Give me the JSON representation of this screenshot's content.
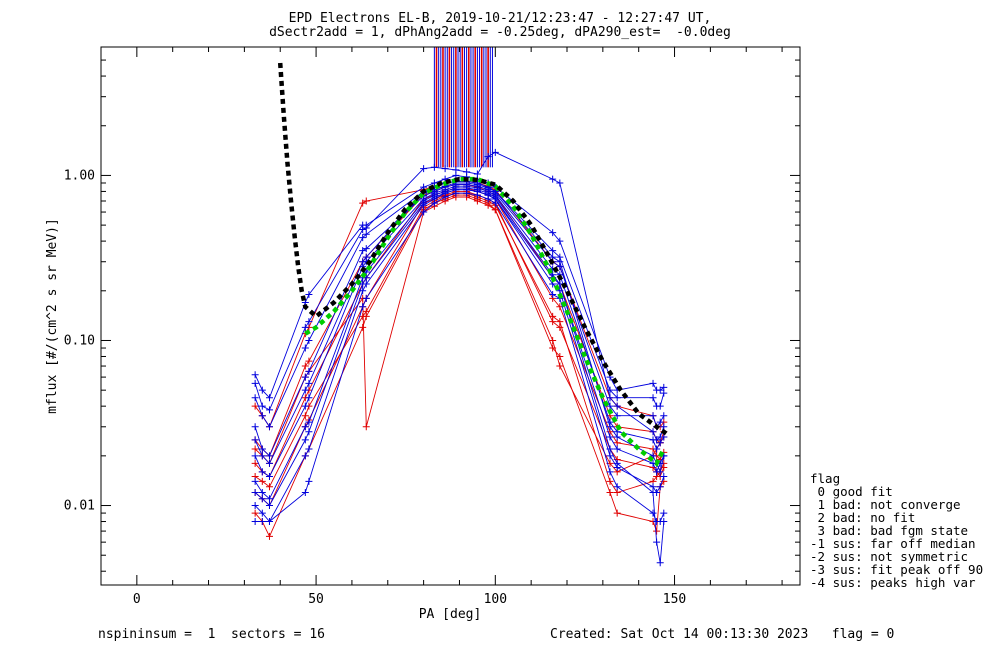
{
  "chart_data": {
    "type": "line",
    "title": "EPD Electrons EL-B, 2019-10-21/12:23:47 - 12:27:47 UT,",
    "subtitle": "dSectr2add = 1, dPhAng2add = -0.25deg, dPA290_est=  -0.0deg",
    "xlabel": "PA [deg]",
    "ylabel": "mflux [#/(cm^2 s sr MeV)]",
    "xlim": [
      -10,
      185
    ],
    "ylim": [
      0.0033,
      6.0
    ],
    "ylog": true,
    "xticks": [
      0,
      50,
      100,
      150
    ],
    "xtick_labels": [
      "0",
      "50",
      "100",
      "150"
    ],
    "yticks": [
      0.01,
      0.1,
      1.0
    ],
    "ytick_labels": [
      "0.01",
      "0.10",
      "1.00"
    ],
    "grid": false,
    "colors": {
      "red": "#e00000",
      "blue": "#0000dd",
      "green": "#00cc00",
      "black": "#000000"
    },
    "model_fit_black": {
      "name": "",
      "x": [
        40,
        41,
        42,
        43,
        44,
        45,
        46,
        47,
        50,
        55,
        60,
        65,
        70,
        75,
        80,
        85,
        90,
        95,
        100,
        105,
        110,
        115,
        120,
        125,
        130,
        135,
        140,
        145,
        148
      ],
      "y": [
        4.8,
        2.3,
        1.2,
        0.7,
        0.43,
        0.28,
        0.2,
        0.16,
        0.14,
        0.17,
        0.22,
        0.3,
        0.45,
        0.63,
        0.8,
        0.9,
        0.95,
        0.94,
        0.88,
        0.7,
        0.5,
        0.32,
        0.2,
        0.12,
        0.075,
        0.05,
        0.036,
        0.03,
        0.027
      ]
    },
    "median_fit_green": {
      "name": "",
      "x": [
        47,
        50,
        55,
        60,
        65,
        70,
        75,
        80,
        85,
        90,
        95,
        100,
        105,
        110,
        115,
        120,
        125,
        130,
        135,
        140,
        145,
        147
      ],
      "y": [
        0.11,
        0.12,
        0.15,
        0.2,
        0.28,
        0.42,
        0.6,
        0.78,
        0.88,
        0.95,
        0.95,
        0.86,
        0.65,
        0.44,
        0.27,
        0.15,
        0.08,
        0.045,
        0.028,
        0.022,
        0.018,
        0.022
      ]
    },
    "sample_x": [
      33,
      35,
      37,
      47,
      48,
      63,
      64,
      80,
      83,
      86,
      89,
      92,
      95,
      98,
      100,
      116,
      118,
      132,
      134,
      144,
      145,
      146,
      147
    ],
    "series_blue": [
      [
        0.062,
        0.05,
        0.045,
        0.17,
        0.19,
        0.5,
        0.5,
        0.85,
        0.9,
        0.95,
        1.0,
        0.98,
        0.95,
        0.9,
        0.85,
        0.45,
        0.4,
        0.06,
        0.05,
        0.055,
        0.05,
        0.05,
        0.052
      ],
      [
        0.045,
        0.035,
        0.03,
        0.09,
        0.1,
        0.42,
        0.44,
        0.8,
        0.85,
        0.9,
        0.92,
        0.92,
        0.9,
        0.85,
        0.8,
        0.35,
        0.32,
        0.05,
        0.045,
        0.045,
        0.04,
        0.04,
        0.048
      ],
      [
        0.03,
        0.022,
        0.02,
        0.06,
        0.065,
        0.35,
        0.36,
        0.75,
        0.8,
        0.85,
        0.88,
        0.88,
        0.86,
        0.82,
        0.78,
        0.3,
        0.28,
        0.04,
        0.035,
        0.035,
        0.03,
        0.032,
        0.035
      ],
      [
        0.02,
        0.016,
        0.015,
        0.04,
        0.045,
        0.28,
        0.3,
        0.72,
        0.78,
        0.82,
        0.86,
        0.86,
        0.84,
        0.8,
        0.76,
        0.27,
        0.25,
        0.032,
        0.028,
        0.025,
        0.022,
        0.024,
        0.026
      ],
      [
        0.014,
        0.012,
        0.011,
        0.03,
        0.032,
        0.24,
        0.26,
        0.7,
        0.76,
        0.8,
        0.84,
        0.84,
        0.82,
        0.78,
        0.74,
        0.25,
        0.22,
        0.026,
        0.022,
        0.018,
        0.016,
        0.018,
        0.02
      ],
      [
        0.01,
        0.009,
        0.008,
        0.02,
        0.022,
        0.2,
        0.22,
        0.66,
        0.72,
        0.78,
        0.82,
        0.82,
        0.8,
        0.76,
        0.72,
        0.22,
        0.2,
        0.02,
        0.017,
        0.013,
        0.012,
        0.013,
        0.015
      ],
      [
        0.008,
        0.008,
        0.008,
        0.012,
        0.014,
        0.16,
        0.18,
        0.6,
        0.68,
        0.74,
        0.78,
        0.78,
        0.76,
        0.72,
        0.68,
        0.19,
        0.18,
        0.016,
        0.013,
        0.009,
        0.008,
        0.008,
        0.009
      ],
      [
        0.055,
        0.04,
        0.038,
        0.12,
        0.13,
        0.47,
        0.48,
        1.1,
        1.12,
        1.1,
        1.08,
        1.05,
        1.02,
        1.3,
        1.38,
        0.95,
        0.9,
        0.045,
        0.04,
        0.028,
        0.025,
        0.026,
        0.03
      ],
      [
        0.025,
        0.02,
        0.018,
        0.05,
        0.055,
        0.3,
        0.32,
        0.78,
        0.82,
        0.86,
        0.9,
        0.9,
        0.88,
        0.84,
        0.8,
        0.32,
        0.3,
        0.03,
        0.026,
        0.02,
        0.018,
        0.016,
        0.02
      ],
      [
        0.012,
        0.011,
        0.01,
        0.025,
        0.028,
        0.22,
        0.24,
        0.68,
        0.74,
        0.78,
        0.82,
        0.82,
        0.8,
        0.76,
        0.72,
        0.24,
        0.22,
        0.022,
        0.018,
        0.012,
        0.006,
        0.0045,
        0.008
      ]
    ],
    "series_red": [
      [
        0.04,
        0.035,
        0.03,
        0.11,
        0.12,
        0.68,
        0.7,
        0.82,
        0.86,
        0.9,
        0.92,
        0.92,
        0.9,
        0.86,
        0.82,
        0.3,
        0.28,
        0.045,
        0.04,
        0.035,
        0.03,
        0.03,
        0.032
      ],
      [
        0.025,
        0.022,
        0.02,
        0.07,
        0.075,
        0.3,
        0.32,
        0.76,
        0.8,
        0.85,
        0.88,
        0.88,
        0.85,
        0.8,
        0.76,
        0.24,
        0.22,
        0.035,
        0.03,
        0.028,
        0.025,
        0.024,
        0.026
      ],
      [
        0.018,
        0.016,
        0.015,
        0.045,
        0.05,
        0.22,
        0.24,
        0.72,
        0.76,
        0.8,
        0.84,
        0.84,
        0.8,
        0.76,
        0.72,
        0.18,
        0.16,
        0.028,
        0.024,
        0.022,
        0.02,
        0.019,
        0.021
      ],
      [
        0.012,
        0.011,
        0.01,
        0.03,
        0.033,
        0.16,
        0.18,
        0.68,
        0.72,
        0.76,
        0.8,
        0.8,
        0.76,
        0.72,
        0.68,
        0.13,
        0.12,
        0.022,
        0.019,
        0.017,
        0.016,
        0.015,
        0.017
      ],
      [
        0.009,
        0.008,
        0.0065,
        0.02,
        0.022,
        0.12,
        0.14,
        0.62,
        0.68,
        0.72,
        0.76,
        0.76,
        0.72,
        0.68,
        0.62,
        0.09,
        0.08,
        0.012,
        0.009,
        0.008,
        0.007,
        0.013,
        0.014
      ],
      [
        0.022,
        0.02,
        0.018,
        0.06,
        0.065,
        0.18,
        0.03,
        0.6,
        0.65,
        0.7,
        0.74,
        0.74,
        0.7,
        0.66,
        0.62,
        0.1,
        0.07,
        0.018,
        0.016,
        0.02,
        0.022,
        0.024,
        0.028
      ],
      [
        0.015,
        0.014,
        0.013,
        0.035,
        0.04,
        0.14,
        0.15,
        0.64,
        0.7,
        0.75,
        0.78,
        0.78,
        0.74,
        0.7,
        0.66,
        0.14,
        0.13,
        0.014,
        0.012,
        0.014,
        0.015,
        0.016,
        0.018
      ]
    ],
    "vertical_lines_x": [
      83,
      83.6,
      84.2,
      84.8,
      85.4,
      86,
      86.6,
      87.2,
      87.8,
      88.4,
      89,
      89.6,
      90.2,
      90.8,
      91.4,
      92,
      92.6,
      93.2,
      93.8,
      94.4,
      95,
      95.6,
      96.2,
      96.8,
      97.4,
      98,
      98.6,
      99.2
    ]
  },
  "legend": {
    "title": "flag",
    "items": [
      " 0 good fit",
      " 1 bad: not converge",
      " 2 bad: no fit",
      " 3 bad: bad fgm state",
      "-1 sus: far off median",
      "-2 sus: not symmetric",
      "-3 sus: fit peak off 90",
      "-4 sus: peaks high var"
    ]
  },
  "footer": {
    "left": "nspininsum =  1  sectors = 16",
    "right": "Created: Sat Oct 14 00:13:30 2023   flag = 0"
  }
}
